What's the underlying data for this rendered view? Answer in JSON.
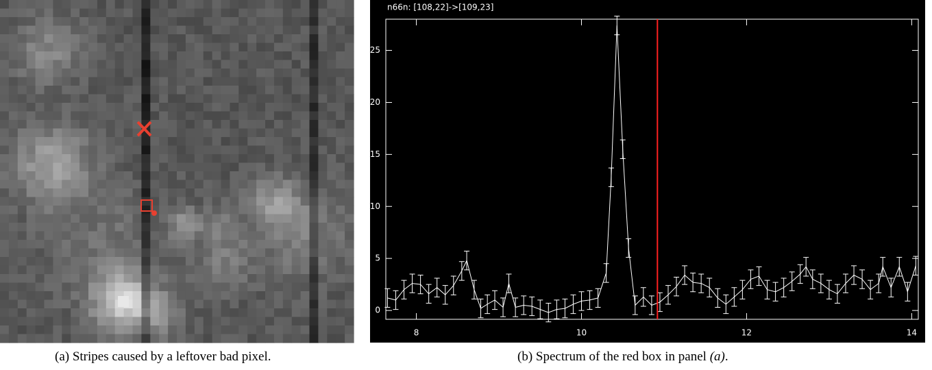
{
  "panel_a": {
    "caption": "(a) Stripes caused by a leftover bad pixel."
  },
  "panel_b": {
    "caption_parts": [
      "(b) Spectrum of the red box in panel ",
      "(a)",
      "."
    ]
  },
  "chart_data": {
    "type": "line",
    "title": "n66n: [108,22]->[109,23]",
    "xlim": [
      7.63,
      14.08
    ],
    "ylim": [
      -0.85,
      28
    ],
    "xticks": [
      8,
      10,
      12,
      14
    ],
    "yticks": [
      0,
      5,
      10,
      15,
      20,
      25
    ],
    "marker_x": 10.92,
    "marker_color": "#ff2020",
    "error": 0.9,
    "series": [
      {
        "color": "#ffffff",
        "x": [
          7.65,
          7.75,
          7.85,
          7.95,
          8.05,
          8.15,
          8.25,
          8.35,
          8.45,
          8.55,
          8.61,
          8.7,
          8.78,
          8.86,
          8.95,
          9.05,
          9.12,
          9.2,
          9.3,
          9.4,
          9.5,
          9.6,
          9.7,
          9.8,
          9.9,
          10.0,
          10.1,
          10.2,
          10.3,
          10.36,
          10.43,
          10.5,
          10.57,
          10.65,
          10.75,
          10.85,
          10.95,
          11.05,
          11.15,
          11.25,
          11.35,
          11.45,
          11.55,
          11.65,
          11.75,
          11.85,
          11.95,
          12.05,
          12.15,
          12.25,
          12.35,
          12.45,
          12.55,
          12.65,
          12.72,
          12.8,
          12.9,
          13.0,
          13.1,
          13.2,
          13.3,
          13.4,
          13.5,
          13.6,
          13.65,
          13.75,
          13.85,
          13.95,
          14.05
        ],
        "values": [
          1.2,
          1.0,
          2.0,
          2.6,
          2.5,
          1.6,
          2.2,
          1.5,
          2.4,
          3.8,
          4.8,
          2.0,
          0.2,
          0.6,
          1.0,
          0.3,
          2.6,
          0.3,
          0.5,
          0.4,
          0.1,
          -0.2,
          0.1,
          0.2,
          0.6,
          0.9,
          1.0,
          1.2,
          3.6,
          12.8,
          27.4,
          15.5,
          6.0,
          0.5,
          1.3,
          0.5,
          0.8,
          1.5,
          2.3,
          3.4,
          2.7,
          2.6,
          2.2,
          1.2,
          0.6,
          1.3,
          2.0,
          3.0,
          3.3,
          2.0,
          1.8,
          2.2,
          2.8,
          3.5,
          4.2,
          3.0,
          2.6,
          2.0,
          1.6,
          2.6,
          3.4,
          3.0,
          2.0,
          2.6,
          4.2,
          2.2,
          4.2,
          1.8,
          4.3
        ]
      }
    ]
  }
}
